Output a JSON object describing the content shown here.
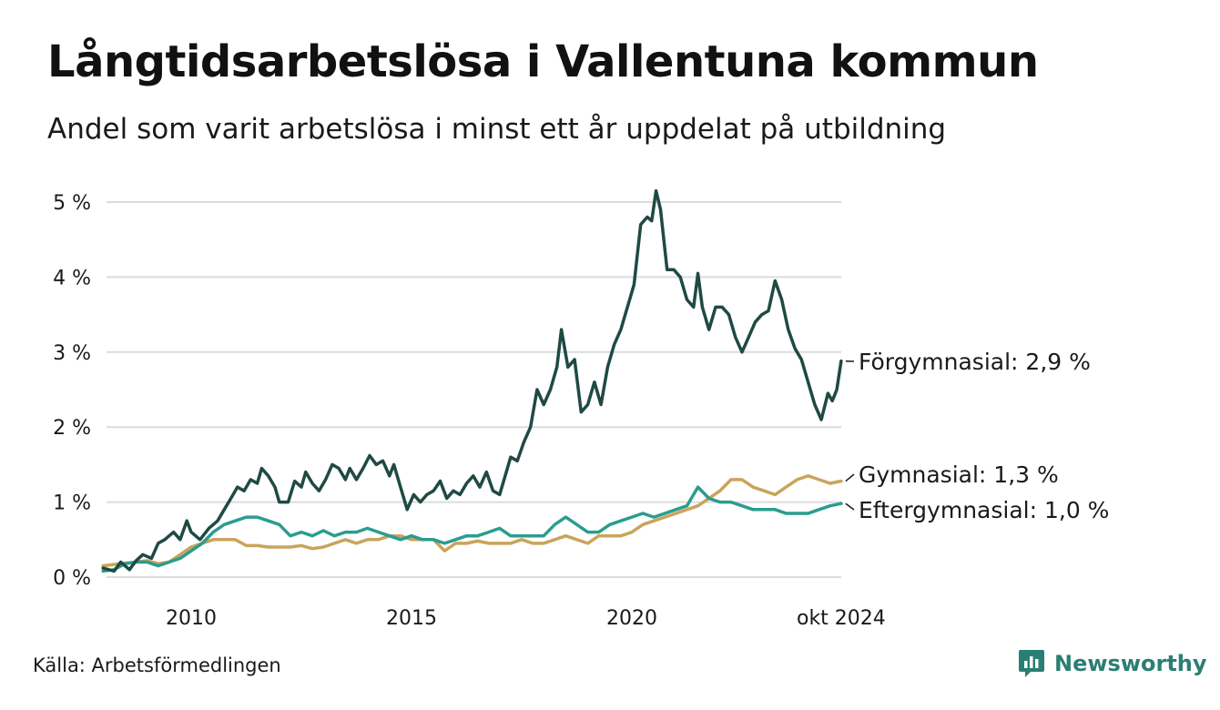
{
  "title": "Långtidsarbetslösa i Vallentuna kommun",
  "subtitle": "Andel som varit arbetslösa i minst ett år uppdelat på utbildning",
  "source": "Källa: Arbetsförmedlingen",
  "brand": {
    "name": "Newsworthy",
    "icon": "newsworthy-logo-icon",
    "color": "#2a7f72"
  },
  "chart_data": {
    "type": "line",
    "title": "Långtidsarbetslösa i Vallentuna kommun",
    "xlabel": "",
    "ylabel": "",
    "x_range": [
      2008.0,
      2024.75
    ],
    "ylim": [
      0,
      5.2
    ],
    "y_ticks": [
      {
        "value": 0,
        "label": "0 %"
      },
      {
        "value": 1,
        "label": "1 %"
      },
      {
        "value": 2,
        "label": "2 %"
      },
      {
        "value": 3,
        "label": "3 %"
      },
      {
        "value": 4,
        "label": "4 %"
      },
      {
        "value": 5,
        "label": "5 %"
      }
    ],
    "x_ticks": [
      {
        "value": 2010,
        "label": "2010"
      },
      {
        "value": 2015,
        "label": "2015"
      },
      {
        "value": 2020,
        "label": "2020"
      },
      {
        "value": 2024.75,
        "label": "okt 2024"
      }
    ],
    "grid": true,
    "series": [
      {
        "name": "Förgymnasial",
        "end_label": "Förgymnasial: 2,9 %",
        "color": "#1f4a44",
        "points": [
          [
            2008.0,
            0.12
          ],
          [
            2008.25,
            0.08
          ],
          [
            2008.4,
            0.2
          ],
          [
            2008.6,
            0.1
          ],
          [
            2008.75,
            0.22
          ],
          [
            2008.9,
            0.3
          ],
          [
            2009.1,
            0.25
          ],
          [
            2009.25,
            0.45
          ],
          [
            2009.4,
            0.5
          ],
          [
            2009.6,
            0.6
          ],
          [
            2009.75,
            0.5
          ],
          [
            2009.9,
            0.75
          ],
          [
            2010.0,
            0.6
          ],
          [
            2010.2,
            0.5
          ],
          [
            2010.4,
            0.65
          ],
          [
            2010.6,
            0.75
          ],
          [
            2010.75,
            0.9
          ],
          [
            2010.9,
            1.05
          ],
          [
            2011.05,
            1.2
          ],
          [
            2011.2,
            1.15
          ],
          [
            2011.35,
            1.3
          ],
          [
            2011.5,
            1.25
          ],
          [
            2011.6,
            1.45
          ],
          [
            2011.75,
            1.35
          ],
          [
            2011.9,
            1.2
          ],
          [
            2012.0,
            1.0
          ],
          [
            2012.2,
            1.0
          ],
          [
            2012.35,
            1.28
          ],
          [
            2012.5,
            1.2
          ],
          [
            2012.6,
            1.4
          ],
          [
            2012.75,
            1.25
          ],
          [
            2012.9,
            1.15
          ],
          [
            2013.05,
            1.3
          ],
          [
            2013.2,
            1.5
          ],
          [
            2013.35,
            1.45
          ],
          [
            2013.5,
            1.3
          ],
          [
            2013.6,
            1.45
          ],
          [
            2013.75,
            1.3
          ],
          [
            2013.9,
            1.45
          ],
          [
            2014.05,
            1.62
          ],
          [
            2014.2,
            1.5
          ],
          [
            2014.35,
            1.55
          ],
          [
            2014.5,
            1.35
          ],
          [
            2014.6,
            1.5
          ],
          [
            2014.75,
            1.2
          ],
          [
            2014.9,
            0.9
          ],
          [
            2015.05,
            1.1
          ],
          [
            2015.2,
            1.0
          ],
          [
            2015.35,
            1.1
          ],
          [
            2015.5,
            1.15
          ],
          [
            2015.65,
            1.28
          ],
          [
            2015.8,
            1.05
          ],
          [
            2015.95,
            1.15
          ],
          [
            2016.1,
            1.1
          ],
          [
            2016.25,
            1.25
          ],
          [
            2016.4,
            1.35
          ],
          [
            2016.55,
            1.2
          ],
          [
            2016.7,
            1.4
          ],
          [
            2016.85,
            1.15
          ],
          [
            2017.0,
            1.1
          ],
          [
            2017.15,
            1.4
          ],
          [
            2017.25,
            1.6
          ],
          [
            2017.4,
            1.55
          ],
          [
            2017.55,
            1.8
          ],
          [
            2017.7,
            2.0
          ],
          [
            2017.85,
            2.5
          ],
          [
            2018.0,
            2.3
          ],
          [
            2018.15,
            2.5
          ],
          [
            2018.3,
            2.8
          ],
          [
            2018.4,
            3.3
          ],
          [
            2018.55,
            2.8
          ],
          [
            2018.7,
            2.9
          ],
          [
            2018.85,
            2.2
          ],
          [
            2019.0,
            2.3
          ],
          [
            2019.15,
            2.6
          ],
          [
            2019.3,
            2.3
          ],
          [
            2019.45,
            2.8
          ],
          [
            2019.6,
            3.1
          ],
          [
            2019.75,
            3.3
          ],
          [
            2019.85,
            3.5
          ],
          [
            2019.95,
            3.7
          ],
          [
            2020.05,
            3.9
          ],
          [
            2020.2,
            4.7
          ],
          [
            2020.35,
            4.8
          ],
          [
            2020.45,
            4.75
          ],
          [
            2020.55,
            5.15
          ],
          [
            2020.65,
            4.9
          ],
          [
            2020.8,
            4.1
          ],
          [
            2020.95,
            4.1
          ],
          [
            2021.1,
            4.0
          ],
          [
            2021.25,
            3.7
          ],
          [
            2021.4,
            3.6
          ],
          [
            2021.5,
            4.05
          ],
          [
            2021.6,
            3.6
          ],
          [
            2021.75,
            3.3
          ],
          [
            2021.9,
            3.6
          ],
          [
            2022.05,
            3.6
          ],
          [
            2022.2,
            3.5
          ],
          [
            2022.35,
            3.2
          ],
          [
            2022.5,
            3.0
          ],
          [
            2022.65,
            3.2
          ],
          [
            2022.8,
            3.4
          ],
          [
            2022.95,
            3.5
          ],
          [
            2023.1,
            3.55
          ],
          [
            2023.25,
            3.95
          ],
          [
            2023.4,
            3.7
          ],
          [
            2023.55,
            3.3
          ],
          [
            2023.7,
            3.05
          ],
          [
            2023.85,
            2.9
          ],
          [
            2024.0,
            2.6
          ],
          [
            2024.15,
            2.3
          ],
          [
            2024.3,
            2.1
          ],
          [
            2024.45,
            2.45
          ],
          [
            2024.55,
            2.35
          ],
          [
            2024.65,
            2.5
          ],
          [
            2024.75,
            2.88
          ]
        ]
      },
      {
        "name": "Gymnasial",
        "end_label": "Gymnasial: 1,3 %",
        "color": "#c9a45a",
        "points": [
          [
            2008.0,
            0.15
          ],
          [
            2008.4,
            0.18
          ],
          [
            2008.75,
            0.2
          ],
          [
            2009.0,
            0.22
          ],
          [
            2009.25,
            0.18
          ],
          [
            2009.5,
            0.2
          ],
          [
            2009.75,
            0.3
          ],
          [
            2010.0,
            0.4
          ],
          [
            2010.25,
            0.45
          ],
          [
            2010.5,
            0.5
          ],
          [
            2010.75,
            0.5
          ],
          [
            2011.0,
            0.5
          ],
          [
            2011.25,
            0.42
          ],
          [
            2011.5,
            0.42
          ],
          [
            2011.75,
            0.4
          ],
          [
            2012.0,
            0.4
          ],
          [
            2012.25,
            0.4
          ],
          [
            2012.5,
            0.42
          ],
          [
            2012.75,
            0.38
          ],
          [
            2013.0,
            0.4
          ],
          [
            2013.25,
            0.45
          ],
          [
            2013.5,
            0.5
          ],
          [
            2013.75,
            0.45
          ],
          [
            2014.0,
            0.5
          ],
          [
            2014.25,
            0.5
          ],
          [
            2014.5,
            0.55
          ],
          [
            2014.75,
            0.55
          ],
          [
            2015.0,
            0.5
          ],
          [
            2015.25,
            0.5
          ],
          [
            2015.5,
            0.5
          ],
          [
            2015.75,
            0.35
          ],
          [
            2016.0,
            0.45
          ],
          [
            2016.25,
            0.45
          ],
          [
            2016.5,
            0.48
          ],
          [
            2016.75,
            0.45
          ],
          [
            2017.0,
            0.45
          ],
          [
            2017.25,
            0.45
          ],
          [
            2017.5,
            0.5
          ],
          [
            2017.75,
            0.45
          ],
          [
            2018.0,
            0.45
          ],
          [
            2018.25,
            0.5
          ],
          [
            2018.5,
            0.55
          ],
          [
            2018.75,
            0.5
          ],
          [
            2019.0,
            0.45
          ],
          [
            2019.25,
            0.55
          ],
          [
            2019.5,
            0.55
          ],
          [
            2019.75,
            0.55
          ],
          [
            2020.0,
            0.6
          ],
          [
            2020.25,
            0.7
          ],
          [
            2020.5,
            0.75
          ],
          [
            2020.75,
            0.8
          ],
          [
            2021.0,
            0.85
          ],
          [
            2021.25,
            0.9
          ],
          [
            2021.5,
            0.95
          ],
          [
            2021.75,
            1.05
          ],
          [
            2022.0,
            1.15
          ],
          [
            2022.25,
            1.3
          ],
          [
            2022.5,
            1.3
          ],
          [
            2022.75,
            1.2
          ],
          [
            2023.0,
            1.15
          ],
          [
            2023.25,
            1.1
          ],
          [
            2023.5,
            1.2
          ],
          [
            2023.75,
            1.3
          ],
          [
            2024.0,
            1.35
          ],
          [
            2024.25,
            1.3
          ],
          [
            2024.5,
            1.25
          ],
          [
            2024.75,
            1.28
          ]
        ]
      },
      {
        "name": "Eftergymnasial",
        "end_label": "Eftergymnasial: 1,0 %",
        "color": "#2a9d8f",
        "points": [
          [
            2008.0,
            0.08
          ],
          [
            2008.25,
            0.1
          ],
          [
            2008.5,
            0.18
          ],
          [
            2008.75,
            0.2
          ],
          [
            2009.0,
            0.2
          ],
          [
            2009.25,
            0.15
          ],
          [
            2009.5,
            0.2
          ],
          [
            2009.75,
            0.25
          ],
          [
            2010.0,
            0.35
          ],
          [
            2010.25,
            0.45
          ],
          [
            2010.5,
            0.6
          ],
          [
            2010.75,
            0.7
          ],
          [
            2011.0,
            0.75
          ],
          [
            2011.25,
            0.8
          ],
          [
            2011.5,
            0.8
          ],
          [
            2011.75,
            0.75
          ],
          [
            2012.0,
            0.7
          ],
          [
            2012.25,
            0.55
          ],
          [
            2012.5,
            0.6
          ],
          [
            2012.75,
            0.55
          ],
          [
            2013.0,
            0.62
          ],
          [
            2013.25,
            0.55
          ],
          [
            2013.5,
            0.6
          ],
          [
            2013.75,
            0.6
          ],
          [
            2014.0,
            0.65
          ],
          [
            2014.25,
            0.6
          ],
          [
            2014.5,
            0.55
          ],
          [
            2014.75,
            0.5
          ],
          [
            2015.0,
            0.55
          ],
          [
            2015.25,
            0.5
          ],
          [
            2015.5,
            0.5
          ],
          [
            2015.75,
            0.45
          ],
          [
            2016.0,
            0.5
          ],
          [
            2016.25,
            0.55
          ],
          [
            2016.5,
            0.55
          ],
          [
            2016.75,
            0.6
          ],
          [
            2017.0,
            0.65
          ],
          [
            2017.25,
            0.55
          ],
          [
            2017.5,
            0.55
          ],
          [
            2017.75,
            0.55
          ],
          [
            2018.0,
            0.55
          ],
          [
            2018.25,
            0.7
          ],
          [
            2018.5,
            0.8
          ],
          [
            2018.75,
            0.7
          ],
          [
            2019.0,
            0.6
          ],
          [
            2019.25,
            0.6
          ],
          [
            2019.5,
            0.7
          ],
          [
            2019.75,
            0.75
          ],
          [
            2020.0,
            0.8
          ],
          [
            2020.25,
            0.85
          ],
          [
            2020.5,
            0.8
          ],
          [
            2020.75,
            0.85
          ],
          [
            2021.0,
            0.9
          ],
          [
            2021.25,
            0.95
          ],
          [
            2021.5,
            1.2
          ],
          [
            2021.75,
            1.05
          ],
          [
            2022.0,
            1.0
          ],
          [
            2022.25,
            1.0
          ],
          [
            2022.5,
            0.95
          ],
          [
            2022.75,
            0.9
          ],
          [
            2023.0,
            0.9
          ],
          [
            2023.25,
            0.9
          ],
          [
            2023.5,
            0.85
          ],
          [
            2023.75,
            0.85
          ],
          [
            2024.0,
            0.85
          ],
          [
            2024.25,
            0.9
          ],
          [
            2024.5,
            0.95
          ],
          [
            2024.75,
            0.98
          ]
        ]
      }
    ]
  }
}
